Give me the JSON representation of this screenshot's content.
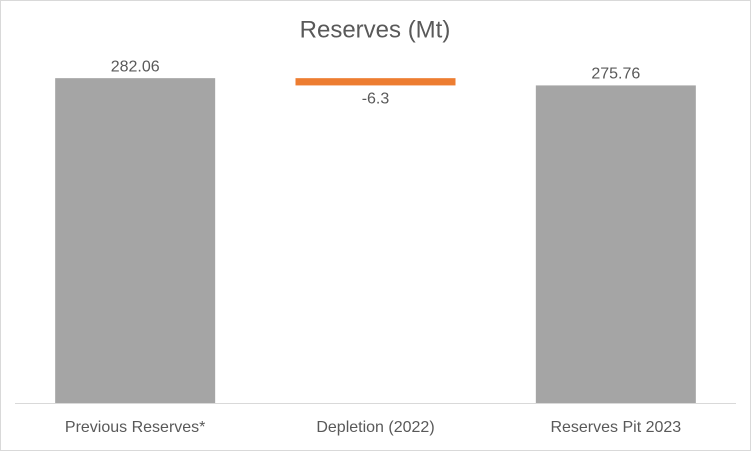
{
  "chart_data": {
    "type": "waterfall",
    "title": "Reserves (Mt)",
    "categories": [
      "Previous Reserves*",
      "Depletion (2022)",
      "Reserves Pit 2023"
    ],
    "values": [
      282.06,
      -6.3,
      275.76
    ],
    "totals": [
      true,
      false,
      true
    ],
    "colors": [
      "#a5a5a5",
      "#ed7d31",
      "#a5a5a5"
    ],
    "ylim": [
      0,
      300
    ]
  }
}
